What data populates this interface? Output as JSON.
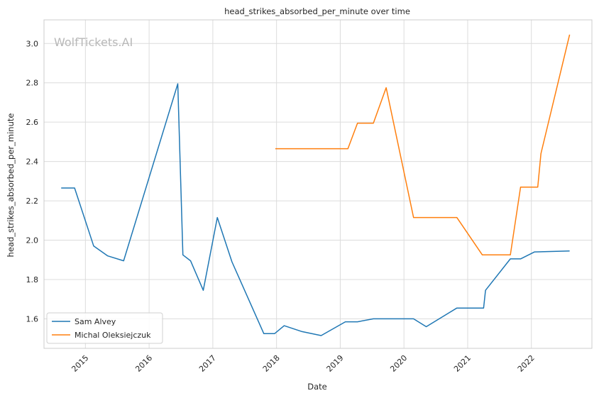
{
  "chart_data": {
    "type": "line",
    "title": "head_strikes_absorbed_per_minute over time",
    "xlabel": "Date",
    "ylabel": "head_strikes_absorbed_per_minute",
    "watermark": "WolfTickets.AI",
    "grid": true,
    "legend_position": "lower-left",
    "xlim": [
      2014.35,
      2022.95
    ],
    "ylim": [
      1.45,
      3.12
    ],
    "x_ticks": [
      2015,
      2016,
      2017,
      2018,
      2019,
      2020,
      2021,
      2022
    ],
    "x_tick_labels": [
      "2015",
      "2016",
      "2017",
      "2018",
      "2019",
      "2020",
      "2021",
      "2022"
    ],
    "y_ticks": [
      1.6,
      1.8,
      2.0,
      2.2,
      2.4,
      2.6,
      2.8,
      3.0
    ],
    "y_tick_labels": [
      "1.6",
      "1.8",
      "2.0",
      "2.2",
      "2.4",
      "2.6",
      "2.8",
      "3.0"
    ],
    "series": [
      {
        "name": "Sam Alvey",
        "color": "#1f77b4",
        "x": [
          2014.62,
          2014.83,
          2015.13,
          2015.35,
          2015.6,
          2016.45,
          2016.53,
          2016.65,
          2016.85,
          2017.07,
          2017.3,
          2017.8,
          2017.97,
          2018.12,
          2018.4,
          2018.7,
          2019.08,
          2019.27,
          2019.52,
          2019.77,
          2020.15,
          2020.35,
          2020.83,
          2021.05,
          2021.25,
          2021.28,
          2021.67,
          2021.83,
          2022.05,
          2022.6
        ],
        "y": [
          2.265,
          2.265,
          1.97,
          1.92,
          1.895,
          2.795,
          1.925,
          1.895,
          1.745,
          2.115,
          1.89,
          1.525,
          1.525,
          1.565,
          1.535,
          1.515,
          1.585,
          1.585,
          1.6,
          1.6,
          1.6,
          1.56,
          1.655,
          1.655,
          1.655,
          1.745,
          1.905,
          1.905,
          1.94,
          1.945
        ]
      },
      {
        "name": "Michal Oleksiejczuk",
        "color": "#ff7f0e",
        "x": [
          2017.98,
          2018.5,
          2019.12,
          2019.27,
          2019.52,
          2019.72,
          2020.15,
          2020.35,
          2020.83,
          2021.23,
          2021.67,
          2021.83,
          2022.1,
          2022.15,
          2022.6
        ],
        "y": [
          2.465,
          2.465,
          2.465,
          2.595,
          2.595,
          2.775,
          2.115,
          2.115,
          2.115,
          1.925,
          1.925,
          2.27,
          2.27,
          2.44,
          3.045
        ]
      }
    ]
  }
}
